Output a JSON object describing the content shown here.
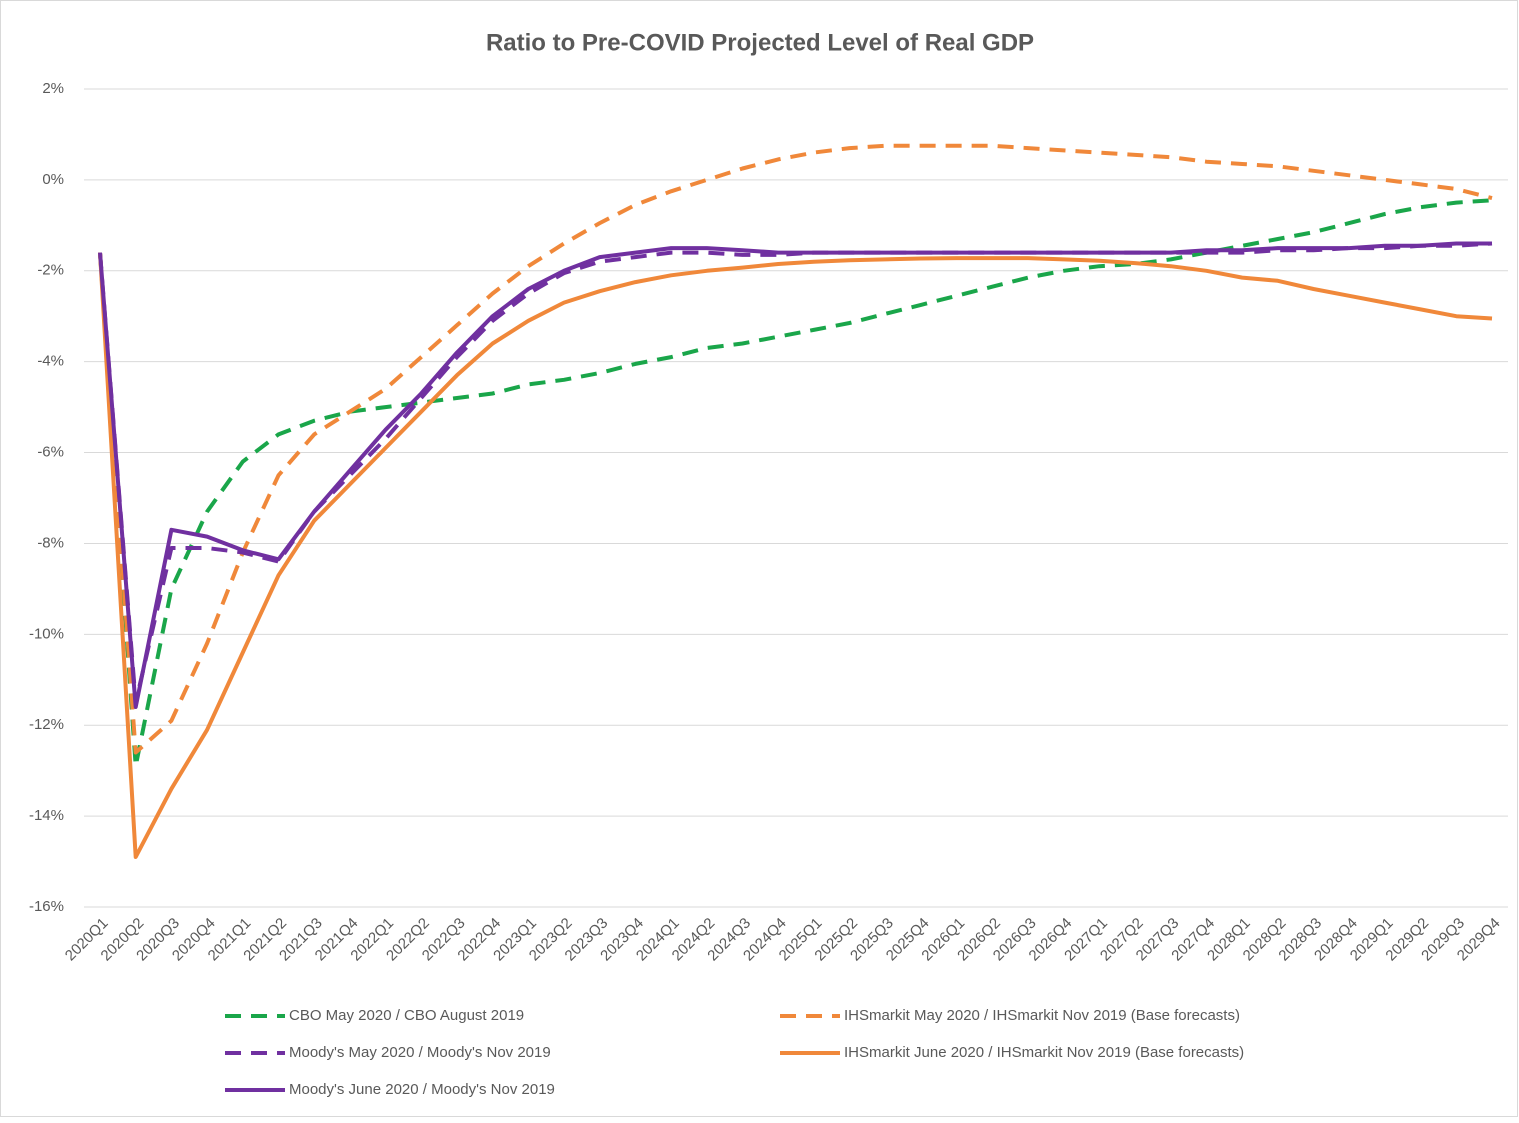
{
  "chart_data": {
    "type": "line",
    "title": "Ratio to Pre-COVID Projected Level of Real GDP",
    "categories": [
      "2020Q1",
      "2020Q2",
      "2020Q3",
      "2020Q4",
      "2021Q1",
      "2021Q2",
      "2021Q3",
      "2021Q4",
      "2022Q1",
      "2022Q2",
      "2022Q3",
      "2022Q4",
      "2023Q1",
      "2023Q2",
      "2023Q3",
      "2023Q4",
      "2024Q1",
      "2024Q2",
      "2024Q3",
      "2024Q4",
      "2025Q1",
      "2025Q2",
      "2025Q3",
      "2025Q4",
      "2026Q1",
      "2026Q2",
      "2026Q3",
      "2026Q4",
      "2027Q1",
      "2027Q2",
      "2027Q3",
      "2027Q4",
      "2028Q1",
      "2028Q2",
      "2028Q3",
      "2028Q4",
      "2029Q1",
      "2029Q2",
      "2029Q3",
      "2029Q4"
    ],
    "series": [
      {
        "name": "CBO May 2020 / CBO August 2019",
        "color": "#1aa64a",
        "style": "dashed",
        "values": [
          -1.6,
          -12.9,
          -9.0,
          -7.3,
          -6.2,
          -5.6,
          -5.3,
          -5.1,
          -5.0,
          -4.9,
          -4.8,
          -4.7,
          -4.5,
          -4.4,
          -4.25,
          -4.05,
          -3.9,
          -3.7,
          -3.6,
          -3.45,
          -3.3,
          -3.15,
          -2.95,
          -2.75,
          -2.55,
          -2.35,
          -2.15,
          -2.0,
          -1.9,
          -1.85,
          -1.75,
          -1.6,
          -1.45,
          -1.3,
          -1.15,
          -0.95,
          -0.75,
          -0.6,
          -0.5,
          -0.45
        ]
      },
      {
        "name": "IHSmarkit May 2020 / IHSmarkit Nov 2019 (Base forecasts)",
        "color": "#f0883a",
        "style": "dashed",
        "values": [
          -1.6,
          -12.6,
          -11.9,
          -10.2,
          -8.2,
          -6.5,
          -5.6,
          -5.1,
          -4.6,
          -3.9,
          -3.2,
          -2.5,
          -1.9,
          -1.4,
          -0.95,
          -0.55,
          -0.25,
          0.0,
          0.25,
          0.45,
          0.6,
          0.7,
          0.75,
          0.75,
          0.75,
          0.75,
          0.7,
          0.65,
          0.6,
          0.55,
          0.5,
          0.4,
          0.35,
          0.3,
          0.2,
          0.1,
          0.0,
          -0.1,
          -0.2,
          -0.4
        ]
      },
      {
        "name": "Moody's May 2020 / Moody's Nov 2019",
        "color": "#7030a0",
        "style": "dashed",
        "values": [
          -1.6,
          -11.5,
          -8.1,
          -8.1,
          -8.2,
          -8.4,
          -7.3,
          -6.5,
          -5.7,
          -4.8,
          -3.9,
          -3.1,
          -2.5,
          -2.05,
          -1.8,
          -1.7,
          -1.6,
          -1.6,
          -1.65,
          -1.65,
          -1.6,
          -1.6,
          -1.6,
          -1.6,
          -1.6,
          -1.6,
          -1.6,
          -1.6,
          -1.6,
          -1.6,
          -1.6,
          -1.6,
          -1.6,
          -1.55,
          -1.55,
          -1.5,
          -1.5,
          -1.45,
          -1.45,
          -1.4
        ]
      },
      {
        "name": "IHSmarkit June 2020 / IHSmarkit Nov 2019 (Base forecasts)",
        "color": "#f0883a",
        "style": "solid",
        "values": [
          -1.6,
          -14.9,
          -13.4,
          -12.1,
          -10.4,
          -8.7,
          -7.5,
          -6.7,
          -5.9,
          -5.1,
          -4.3,
          -3.6,
          -3.1,
          -2.7,
          -2.45,
          -2.25,
          -2.1,
          -2.0,
          -1.93,
          -1.85,
          -1.8,
          -1.77,
          -1.75,
          -1.73,
          -1.72,
          -1.72,
          -1.72,
          -1.75,
          -1.78,
          -1.83,
          -1.9,
          -2.0,
          -2.15,
          -2.22,
          -2.4,
          -2.55,
          -2.7,
          -2.85,
          -3.0,
          -3.05
        ]
      },
      {
        "name": "Moody's June 2020 / Moody's Nov 2019",
        "color": "#7030a0",
        "style": "solid",
        "values": [
          -1.6,
          -11.6,
          -7.7,
          -7.85,
          -8.15,
          -8.35,
          -7.3,
          -6.4,
          -5.5,
          -4.7,
          -3.8,
          -3.0,
          -2.4,
          -2.0,
          -1.7,
          -1.6,
          -1.5,
          -1.5,
          -1.55,
          -1.6,
          -1.6,
          -1.6,
          -1.6,
          -1.6,
          -1.6,
          -1.6,
          -1.6,
          -1.6,
          -1.6,
          -1.6,
          -1.6,
          -1.55,
          -1.55,
          -1.5,
          -1.5,
          -1.5,
          -1.45,
          -1.45,
          -1.4,
          -1.4
        ]
      }
    ],
    "ylim": [
      -16,
      2
    ],
    "yticks": [
      {
        "value": -16,
        "label": "-16%"
      },
      {
        "value": -14,
        "label": "-14%"
      },
      {
        "value": -12,
        "label": "-12%"
      },
      {
        "value": -10,
        "label": "-10%"
      },
      {
        "value": -8,
        "label": "-8%"
      },
      {
        "value": -6,
        "label": "-6%"
      },
      {
        "value": -4,
        "label": "-4%"
      },
      {
        "value": -2,
        "label": "-2%"
      },
      {
        "value": 0,
        "label": "0%"
      },
      {
        "value": 2,
        "label": "2%"
      }
    ],
    "grid": true
  }
}
